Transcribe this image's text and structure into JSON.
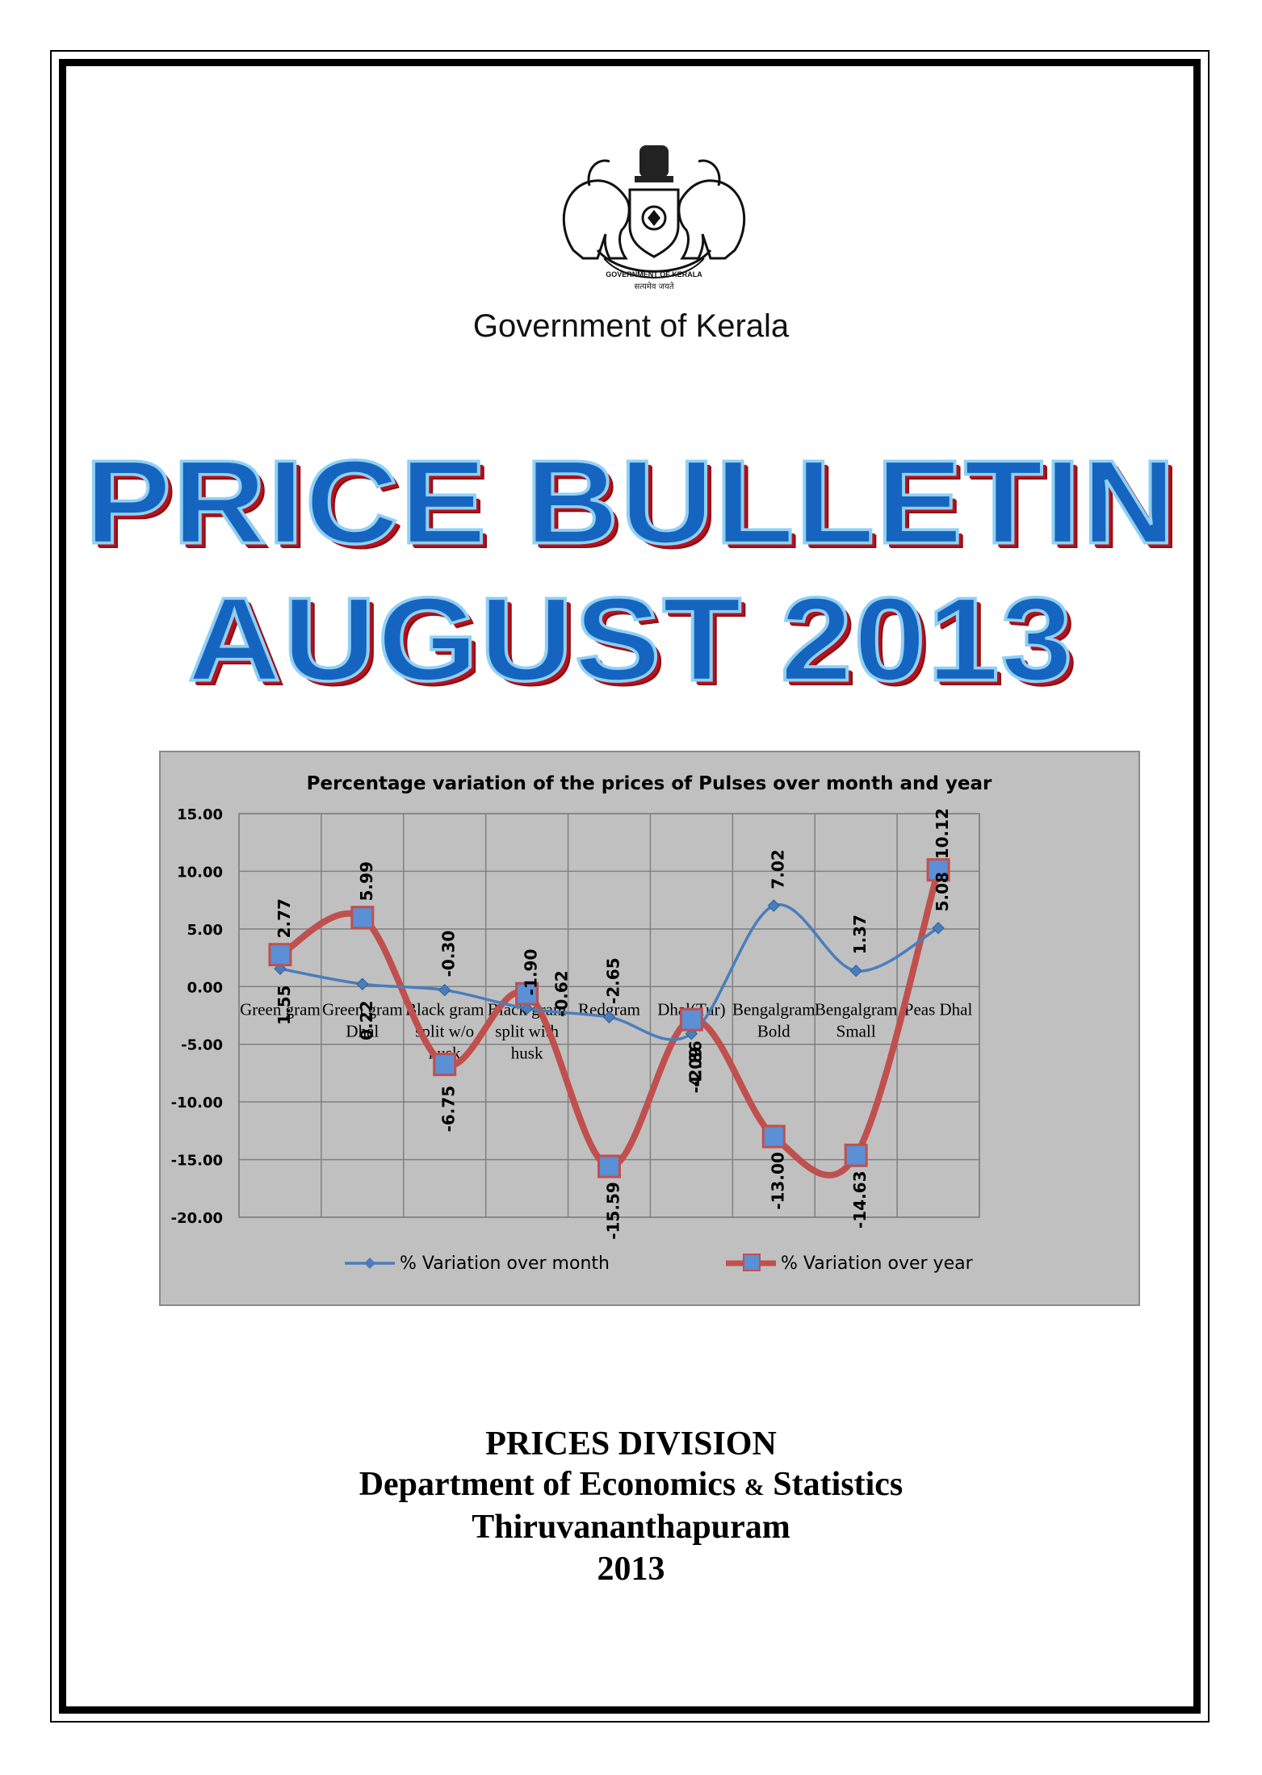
{
  "header": {
    "government": "Government of Kerala",
    "title_line1": "PRICE BULLETIN",
    "title_line2": "AUGUST 2013"
  },
  "emblem": {
    "icon": "kerala-state-emblem-icon",
    "text_arc": "GOVERNMENT OF KERALA",
    "motto": "सत्यमेव जयते"
  },
  "chart_data": {
    "type": "line",
    "title": "Percentage variation of the prices of Pulses over month and year",
    "categories": [
      "Green gram",
      "Green gram Dhal",
      "Black gram split w/o husk",
      "Black gram split with husk",
      "Redgram",
      "Dhal(Tur)",
      "Bengalgram Bold",
      "Bengalgram Small",
      "Peas Dhal"
    ],
    "category_lines": [
      [
        "Green gram"
      ],
      [
        "Green gram",
        "Dhal"
      ],
      [
        "Black gram",
        "split w/o",
        "husk"
      ],
      [
        "Black gram",
        "split with",
        "husk"
      ],
      [
        "Redgram"
      ],
      [
        "Dhal(Tur)"
      ],
      [
        "Bengalgram",
        "Bold"
      ],
      [
        "Bengalgram",
        "Small"
      ],
      [
        "Peas Dhal"
      ]
    ],
    "series": [
      {
        "name": "% Variation over month",
        "color": "#4a7ebb",
        "values": [
          1.55,
          0.22,
          -0.3,
          -1.9,
          -2.65,
          -4.09,
          7.02,
          1.37,
          5.08
        ]
      },
      {
        "name": "% Variation over year",
        "color": "#c0504d",
        "values": [
          2.77,
          5.99,
          -6.75,
          -0.62,
          -15.59,
          -2.86,
          -13.0,
          -14.63,
          10.12
        ]
      }
    ],
    "month_labels": [
      "1.55",
      "0.22",
      "-0.30",
      "-1.90",
      "-2.65",
      "-4.09",
      "7.02",
      "1.37",
      "5.08"
    ],
    "year_labels": [
      "2.77",
      "5.99",
      "-6.75",
      "-0.62",
      "-15.59",
      "-2.86",
      "-13.00",
      "-14.63",
      "10.12"
    ],
    "y_ticks": [
      "15.00",
      "10.00",
      "5.00",
      "0.00",
      "-5.00",
      "-10.00",
      "-15.00",
      "-20.00"
    ],
    "ylim": [
      -20,
      15
    ],
    "grid": true,
    "legend_position": "bottom"
  },
  "footer": {
    "division": "PRICES DIVISION",
    "dept_part1": "Department of Economics ",
    "dept_amp": "&",
    "dept_part2": " Statistics",
    "city": "Thiruvananthapuram",
    "year": "2013"
  }
}
